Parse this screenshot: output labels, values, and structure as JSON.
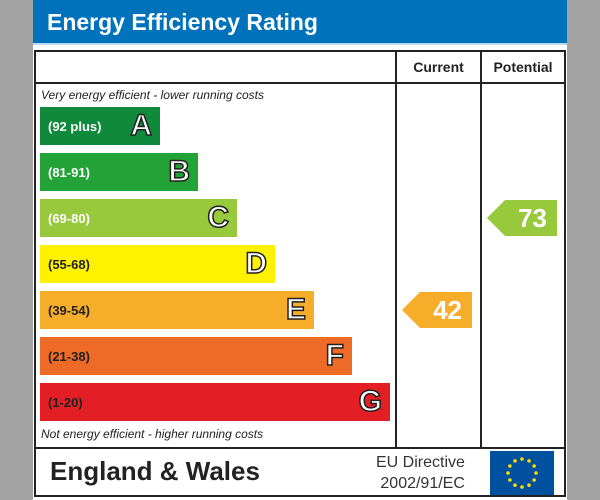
{
  "title": "Energy Efficiency Rating",
  "columns": {
    "current": "Current",
    "potential": "Potential"
  },
  "top_note": "Very energy efficient - lower running costs",
  "bottom_note": "Not energy efficient - higher running costs",
  "footer": {
    "region": "England & Wales",
    "directive_line1": "EU Directive",
    "directive_line2": "2002/91/EC"
  },
  "chart_data": {
    "type": "bar",
    "title": "Energy Efficiency Rating",
    "bands": [
      {
        "letter": "A",
        "range": "(92 plus)",
        "color": "#0f8a3c"
      },
      {
        "letter": "B",
        "range": "(81-91)",
        "color": "#23a337"
      },
      {
        "letter": "C",
        "range": "(69-80)",
        "color": "#98c93c"
      },
      {
        "letter": "D",
        "range": "(55-68)",
        "color": "#fff200"
      },
      {
        "letter": "E",
        "range": "(39-54)",
        "color": "#f6ae2a"
      },
      {
        "letter": "F",
        "range": "(21-38)",
        "color": "#ee6b27"
      },
      {
        "letter": "G",
        "range": "(1-20)",
        "color": "#e31e25"
      }
    ],
    "current": {
      "value": 42,
      "band": "E",
      "color": "#f6ae2a"
    },
    "potential": {
      "value": 73,
      "band": "C",
      "color": "#98c93c"
    }
  }
}
